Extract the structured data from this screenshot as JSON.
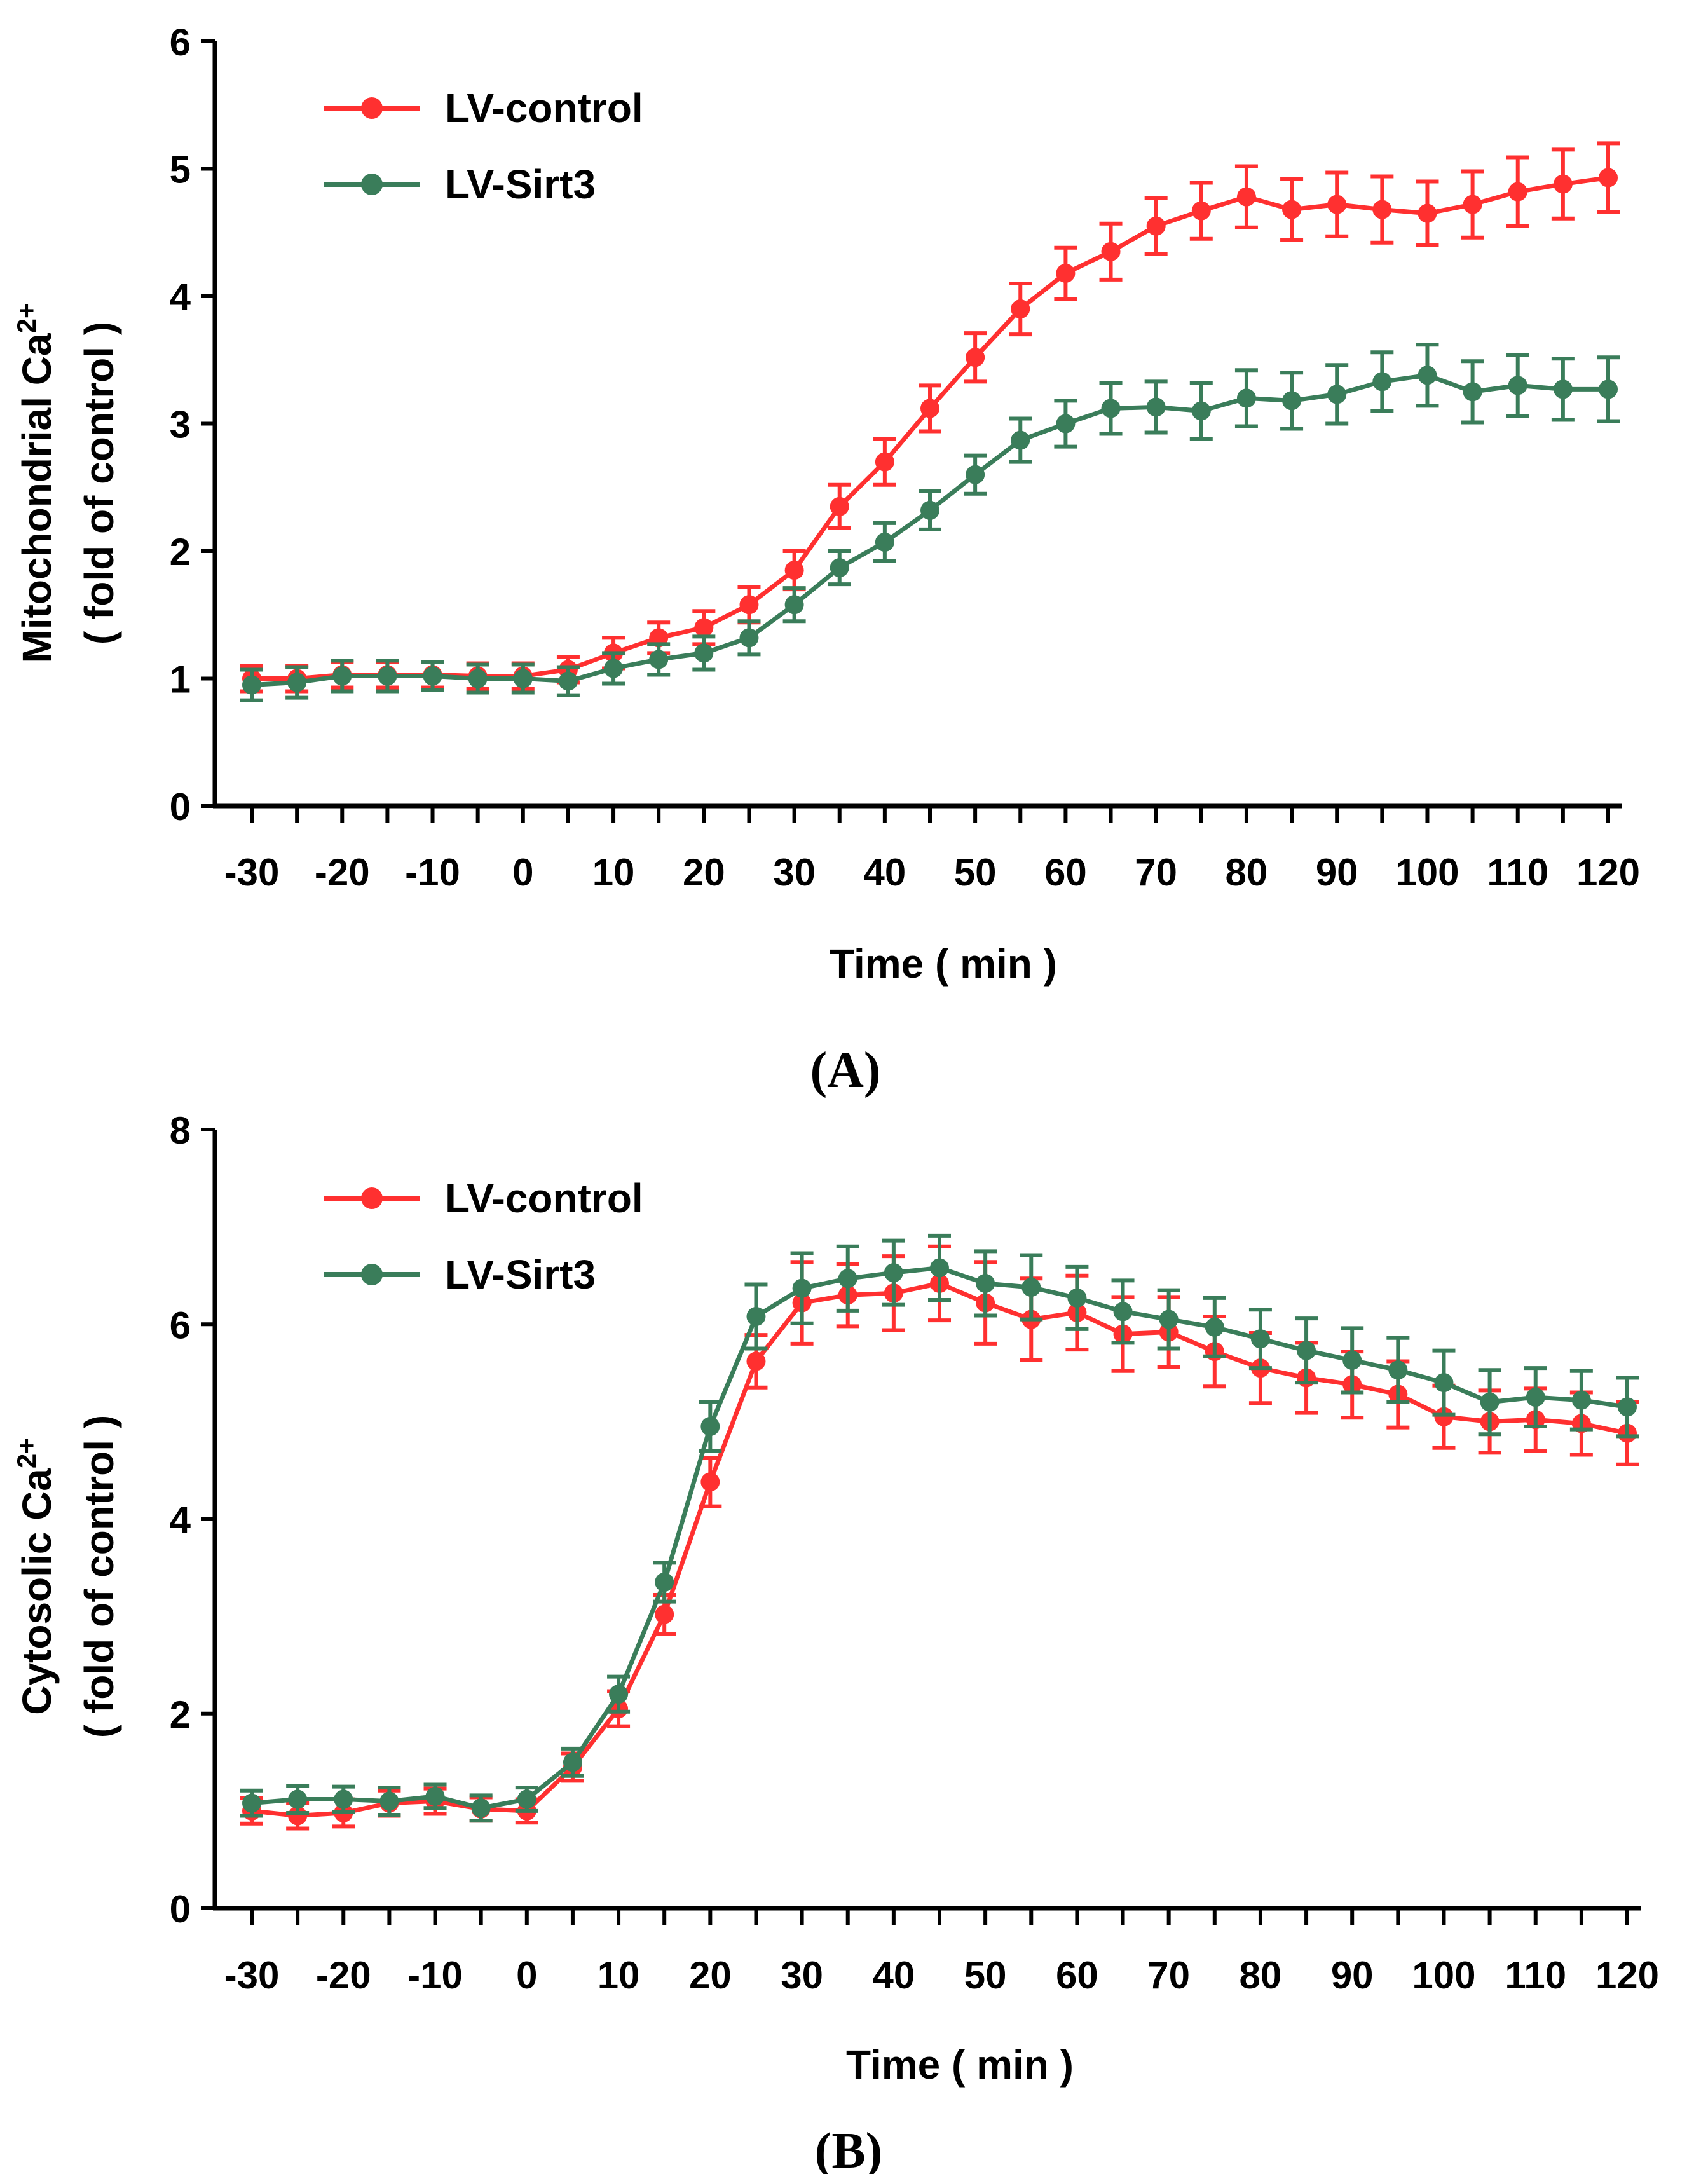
{
  "chart_data": [
    {
      "panel": "A",
      "type": "line",
      "panel_label": "(A)",
      "xlabel": "Time ( min )",
      "ylabel_line1": "Mitochondrial Ca",
      "ylabel_sup": "2+",
      "ylabel_line2": "( fold of control )",
      "xlim": [
        -30,
        120
      ],
      "ylim": [
        0,
        6
      ],
      "x_ticks": [
        -30,
        -20,
        -10,
        0,
        10,
        20,
        30,
        40,
        50,
        60,
        70,
        80,
        90,
        100,
        110,
        120
      ],
      "y_ticks": [
        0,
        1,
        2,
        3,
        4,
        5,
        6
      ],
      "grid": false,
      "legend": "top-left",
      "x": [
        -30,
        -25,
        -20,
        -15,
        -10,
        -5,
        0,
        5,
        10,
        15,
        20,
        25,
        30,
        35,
        40,
        45,
        50,
        55,
        60,
        65,
        70,
        75,
        80,
        85,
        90,
        95,
        100,
        105,
        110,
        115,
        120
      ],
      "series": [
        {
          "name": "LV-control",
          "color": "#ff3030",
          "values": [
            1.0,
            1.0,
            1.03,
            1.03,
            1.03,
            1.02,
            1.02,
            1.07,
            1.2,
            1.32,
            1.4,
            1.58,
            1.85,
            2.35,
            2.7,
            3.12,
            3.52,
            3.9,
            4.18,
            4.35,
            4.55,
            4.67,
            4.78,
            4.68,
            4.72,
            4.68,
            4.65,
            4.72,
            4.82,
            4.88,
            4.93
          ],
          "errors": [
            0.1,
            0.1,
            0.1,
            0.1,
            0.1,
            0.1,
            0.1,
            0.1,
            0.12,
            0.12,
            0.13,
            0.14,
            0.15,
            0.17,
            0.18,
            0.18,
            0.19,
            0.2,
            0.2,
            0.22,
            0.22,
            0.22,
            0.24,
            0.24,
            0.25,
            0.26,
            0.25,
            0.26,
            0.27,
            0.27,
            0.27
          ]
        },
        {
          "name": "LV-Sirt3",
          "color": "#3a7d5a",
          "values": [
            0.95,
            0.97,
            1.02,
            1.02,
            1.02,
            1.0,
            1.0,
            0.98,
            1.08,
            1.15,
            1.2,
            1.32,
            1.58,
            1.87,
            2.07,
            2.32,
            2.6,
            2.87,
            3.0,
            3.12,
            3.13,
            3.1,
            3.2,
            3.18,
            3.23,
            3.33,
            3.38,
            3.25,
            3.3,
            3.27,
            3.27
          ],
          "errors": [
            0.12,
            0.12,
            0.12,
            0.12,
            0.11,
            0.11,
            0.11,
            0.11,
            0.12,
            0.12,
            0.13,
            0.13,
            0.13,
            0.13,
            0.15,
            0.15,
            0.15,
            0.17,
            0.18,
            0.2,
            0.2,
            0.22,
            0.22,
            0.22,
            0.23,
            0.23,
            0.24,
            0.24,
            0.24,
            0.24,
            0.25
          ]
        }
      ]
    },
    {
      "panel": "B",
      "type": "line",
      "panel_label": "(B)",
      "xlabel": "Time ( min )",
      "ylabel_line1": "Cytosolic Ca",
      "ylabel_sup": "2+",
      "ylabel_line2": "( fold of control )",
      "xlim": [
        -30,
        120
      ],
      "ylim": [
        0,
        8
      ],
      "x_ticks": [
        -30,
        -20,
        -10,
        0,
        10,
        20,
        30,
        40,
        50,
        60,
        70,
        80,
        90,
        100,
        110,
        120
      ],
      "y_ticks": [
        0,
        2,
        4,
        6,
        8
      ],
      "grid": false,
      "legend": "top-left",
      "x": [
        -30,
        -25,
        -20,
        -15,
        -10,
        -5,
        0,
        5,
        10,
        15,
        20,
        25,
        30,
        35,
        40,
        45,
        50,
        55,
        60,
        65,
        70,
        75,
        80,
        85,
        90,
        95,
        100,
        105,
        110,
        115,
        120
      ],
      "series": [
        {
          "name": "LV-control",
          "color": "#ff3030",
          "values": [
            1.0,
            0.95,
            0.98,
            1.08,
            1.1,
            1.02,
            1.0,
            1.45,
            2.05,
            3.02,
            4.38,
            5.62,
            6.22,
            6.3,
            6.32,
            6.42,
            6.22,
            6.05,
            6.12,
            5.9,
            5.92,
            5.72,
            5.55,
            5.45,
            5.38,
            5.28,
            5.05,
            5.0,
            5.02,
            4.98,
            4.88
          ],
          "errors": [
            0.13,
            0.13,
            0.14,
            0.13,
            0.13,
            0.12,
            0.12,
            0.14,
            0.18,
            0.2,
            0.25,
            0.27,
            0.42,
            0.32,
            0.38,
            0.38,
            0.42,
            0.42,
            0.38,
            0.38,
            0.36,
            0.36,
            0.36,
            0.36,
            0.34,
            0.34,
            0.32,
            0.32,
            0.32,
            0.32,
            0.32
          ]
        },
        {
          "name": "LV-Sirt3",
          "color": "#3a7d5a",
          "values": [
            1.08,
            1.12,
            1.12,
            1.1,
            1.15,
            1.03,
            1.12,
            1.5,
            2.2,
            3.35,
            4.95,
            6.08,
            6.37,
            6.47,
            6.53,
            6.58,
            6.42,
            6.38,
            6.27,
            6.13,
            6.05,
            5.97,
            5.85,
            5.73,
            5.63,
            5.53,
            5.4,
            5.2,
            5.25,
            5.22,
            5.15
          ],
          "errors": [
            0.13,
            0.14,
            0.13,
            0.14,
            0.12,
            0.13,
            0.12,
            0.14,
            0.18,
            0.2,
            0.25,
            0.33,
            0.36,
            0.33,
            0.33,
            0.33,
            0.33,
            0.33,
            0.32,
            0.32,
            0.3,
            0.3,
            0.3,
            0.33,
            0.33,
            0.33,
            0.33,
            0.33,
            0.3,
            0.3,
            0.3
          ]
        }
      ]
    }
  ]
}
